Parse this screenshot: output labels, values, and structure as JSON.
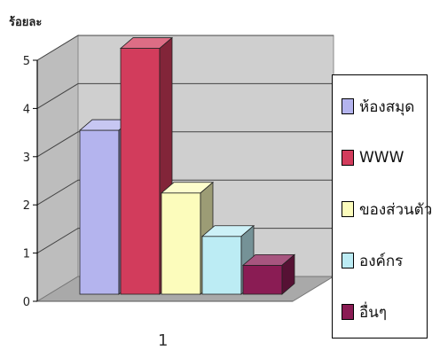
{
  "chart_data": {
    "type": "bar",
    "ylabel": "ร้อยละ",
    "categories": [
      "1"
    ],
    "ylim": [
      0,
      5
    ],
    "yticks": [
      0,
      1,
      2,
      3,
      4,
      5
    ],
    "grid": true,
    "legend_position": "right",
    "series": [
      {
        "name": "ห้องสมุด",
        "values": [
          3.4
        ],
        "color": "#b4b4ee"
      },
      {
        "name": "WWW",
        "values": [
          5.1
        ],
        "color": "#d23c5c"
      },
      {
        "name": "ของส่วนตัว",
        "values": [
          2.1
        ],
        "color": "#fcfcbc"
      },
      {
        "name": "องค์กร",
        "values": [
          1.2
        ],
        "color": "#bcecf4"
      },
      {
        "name": "อื่นๆ",
        "values": [
          0.6
        ],
        "color": "#8a1c54"
      }
    ]
  }
}
